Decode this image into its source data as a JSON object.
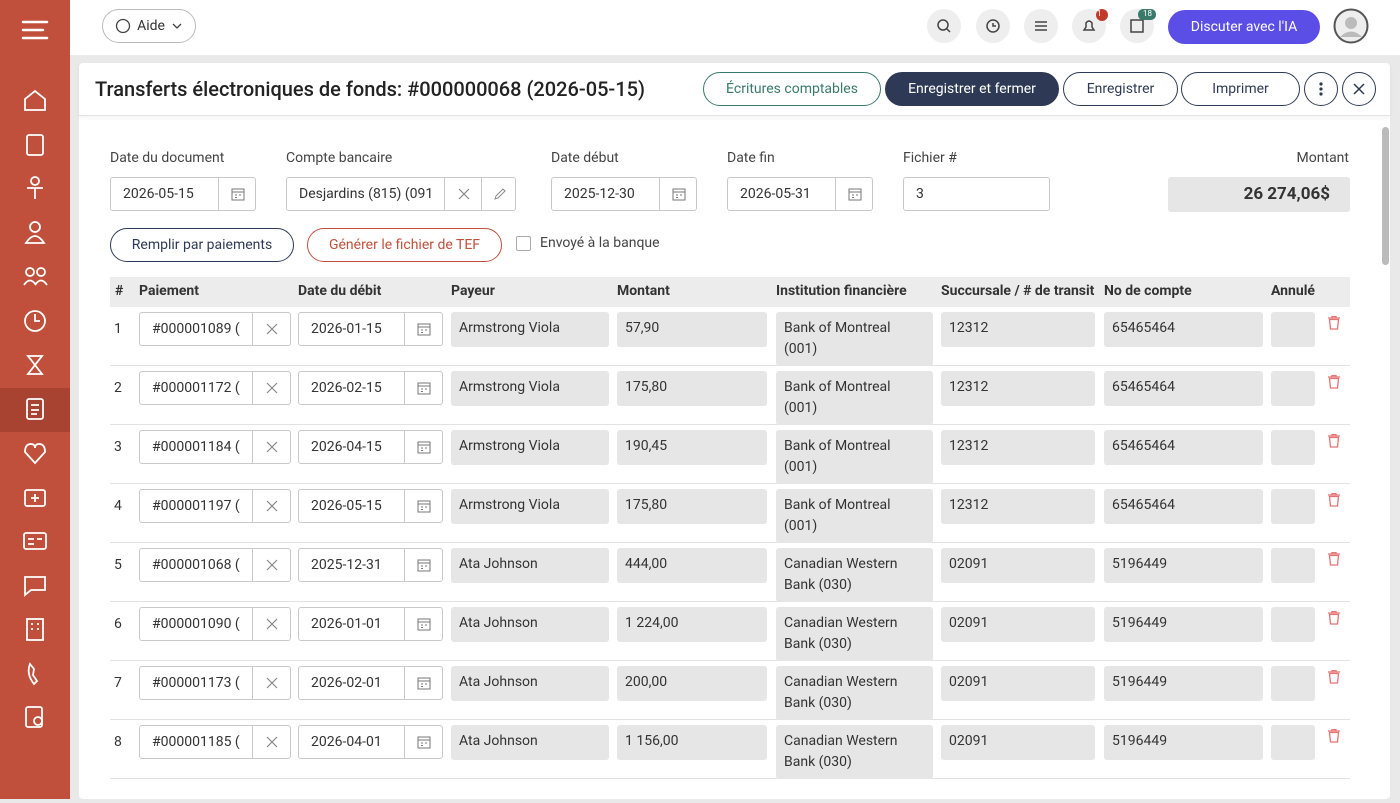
{
  "topbar": {
    "help": "Aide",
    "notification_badge": "1",
    "calendar_badge": "18",
    "ai_button": "Discuter avec l'IA"
  },
  "header": {
    "title": "Transferts électroniques de fonds: #000000068 (2026-05-15)",
    "buttons": [
      "Écritures comptables",
      "Enregistrer et fermer",
      "Enregistrer",
      "Imprimer"
    ]
  },
  "form": {
    "fields": [
      {
        "label": "Date du document",
        "value": "2026-05-15"
      },
      {
        "label": "Compte bancaire",
        "value": "Desjardins (815) (091"
      },
      {
        "label": "Date début",
        "value": "2025-12-30"
      },
      {
        "label": "Date fin",
        "value": "2026-05-31"
      },
      {
        "label": "Fichier #",
        "value": "3"
      }
    ],
    "amount": {
      "label": "Montant",
      "value": "26 274,06$"
    },
    "actions": [
      "Remplir par paiements",
      "Générer le fichier de TEF"
    ],
    "checkbox": "Envoyé à la banque"
  },
  "table": {
    "columns": [
      "#",
      "Paiement",
      "Date du débit",
      "Payeur",
      "Montant",
      "Institution financière",
      "Succursale / # de transit",
      "No de compte",
      "Annulé"
    ],
    "rows": [
      [
        "1",
        "#000001089 (",
        "2026-01-15",
        "Armstrong Viola",
        "57,90",
        "Bank of Montreal (001)",
        "12312",
        "65465464"
      ],
      [
        "2",
        "#000001172 (",
        "2026-02-15",
        "Armstrong Viola",
        "175,80",
        "Bank of Montreal (001)",
        "12312",
        "65465464"
      ],
      [
        "3",
        "#000001184 (",
        "2026-04-15",
        "Armstrong Viola",
        "190,45",
        "Bank of Montreal (001)",
        "12312",
        "65465464"
      ],
      [
        "4",
        "#000001197 (",
        "2026-05-15",
        "Armstrong Viola",
        "175,80",
        "Bank of Montreal (001)",
        "12312",
        "65465464"
      ],
      [
        "5",
        "#000001068 (",
        "2025-12-31",
        "Ata Johnson",
        "444,00",
        "Canadian Western Bank (030)",
        "02091",
        "5196449"
      ],
      [
        "6",
        "#000001090 (",
        "2026-01-01",
        "Ata Johnson",
        "1 224,00",
        "Canadian Western Bank (030)",
        "02091",
        "5196449"
      ],
      [
        "7",
        "#000001173 (",
        "2026-02-01",
        "Ata Johnson",
        "200,00",
        "Canadian Western Bank (030)",
        "02091",
        "5196449"
      ],
      [
        "8",
        "#000001185 (",
        "2026-04-01",
        "Ata Johnson",
        "1 156,00",
        "Canadian Western Bank (030)",
        "02091",
        "5196449"
      ]
    ]
  }
}
